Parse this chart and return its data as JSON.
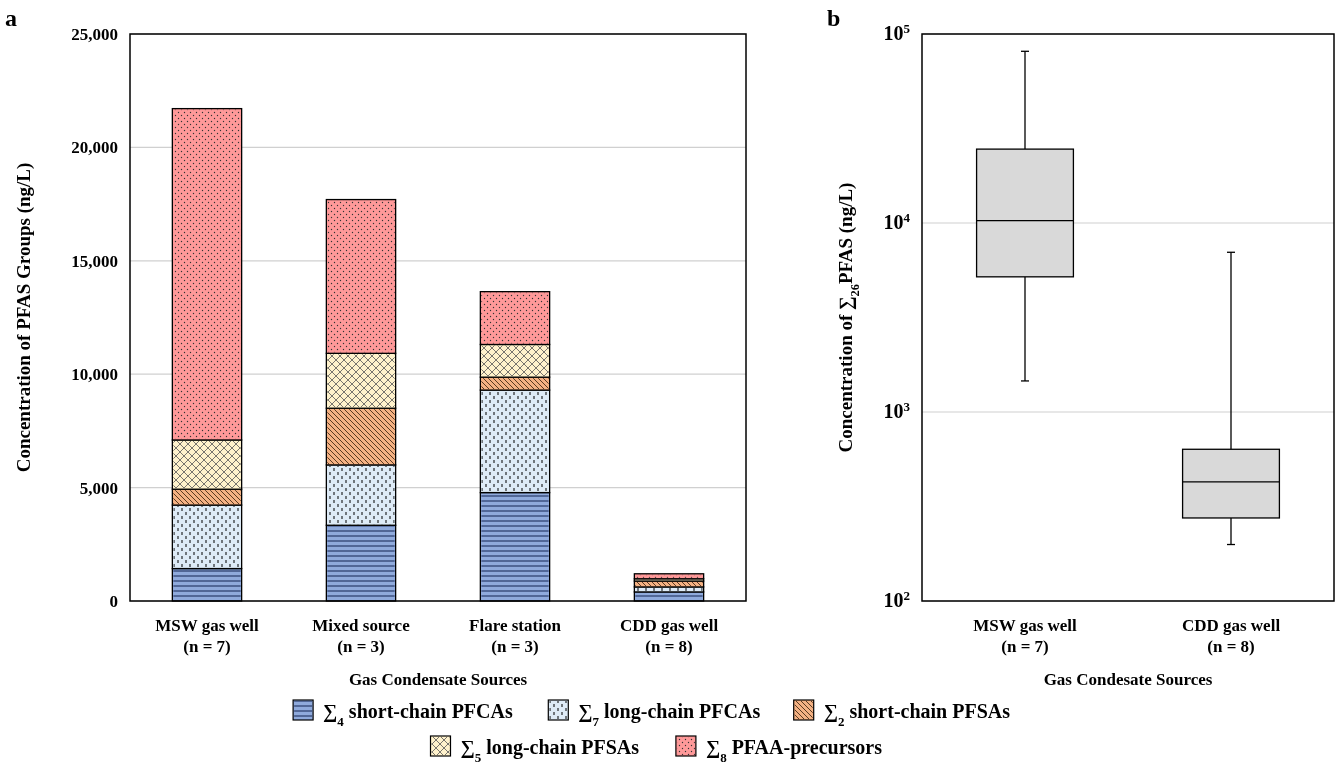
{
  "chart_data": [
    {
      "type": "bar",
      "stacked": true,
      "categories": [
        "MSW gas well\n(n = 7)",
        "Mixed source\n(n = 3)",
        "Flare station\n(n = 3)",
        "CDD gas well\n(n = 8)"
      ],
      "series": [
        {
          "name": "∑$_{4}$ short-chain PFCAs",
          "color": "#8faadc",
          "values": [
            1430,
            3340,
            4780,
            400
          ]
        },
        {
          "name": "∑$_{7}$ long-chain PFCAs",
          "color": "#deebf7",
          "values": [
            2800,
            2660,
            4520,
            220
          ]
        },
        {
          "name": "∑$_{2}$ short-chain PFSAs",
          "color": "#f4b183",
          "values": [
            700,
            2500,
            570,
            260
          ]
        },
        {
          "name": "∑$_{5}$ long-chain PFSAs",
          "color": "#fff2cc",
          "values": [
            2170,
            2420,
            1440,
            100
          ]
        },
        {
          "name": "∑$_{8}$ PFAA-precursors",
          "color": "#ff9999",
          "values": [
            14610,
            6780,
            2330,
            220
          ]
        }
      ],
      "ylim": [
        0,
        25000
      ],
      "yticks": [
        {
          "value": 0,
          "label": "0"
        },
        {
          "value": 5000,
          "label": "5,000"
        },
        {
          "value": 10000,
          "label": "10,000"
        },
        {
          "value": 15000,
          "label": "15,000"
        },
        {
          "value": 20000,
          "label": "20,000"
        },
        {
          "value": 25000,
          "label": "25,000"
        }
      ],
      "grid": "y",
      "legend": "bottom",
      "xlabel": "Gas Condensate Sources",
      "ylabel": "Concentration of PFAS Groups (ng/L)",
      "annotations": [
        "a"
      ]
    },
    {
      "type": "box",
      "categories": [
        "MSW gas well\n(n = 7)",
        "CDD gas well\n(n = 8)"
      ],
      "series": [
        {
          "color": "#d9d9d9",
          "boxes": [
            {
              "low": 1460,
              "q1": 5190,
              "median": 10300,
              "q3": 24600,
              "high": 81000
            },
            {
              "low": 199,
              "q1": 275,
              "median": 427,
              "q3": 635,
              "high": 7000
            }
          ]
        }
      ],
      "log": true,
      "ylim": [
        100,
        100000
      ],
      "yticks": [
        {
          "value": 100,
          "label": "10$^{2}$"
        },
        {
          "value": 1000,
          "label": "10$^{3}$"
        },
        {
          "value": 10000,
          "label": "10$^{4}$"
        },
        {
          "value": 100000,
          "label": "10$^{5}$"
        }
      ],
      "grid": "y",
      "legend": false,
      "xlabel": "Gas Condesate Sources",
      "ylabel": "Concentration of ∑$_{26}$PFAS (ng/L)",
      "annotations": [
        "b"
      ]
    }
  ]
}
